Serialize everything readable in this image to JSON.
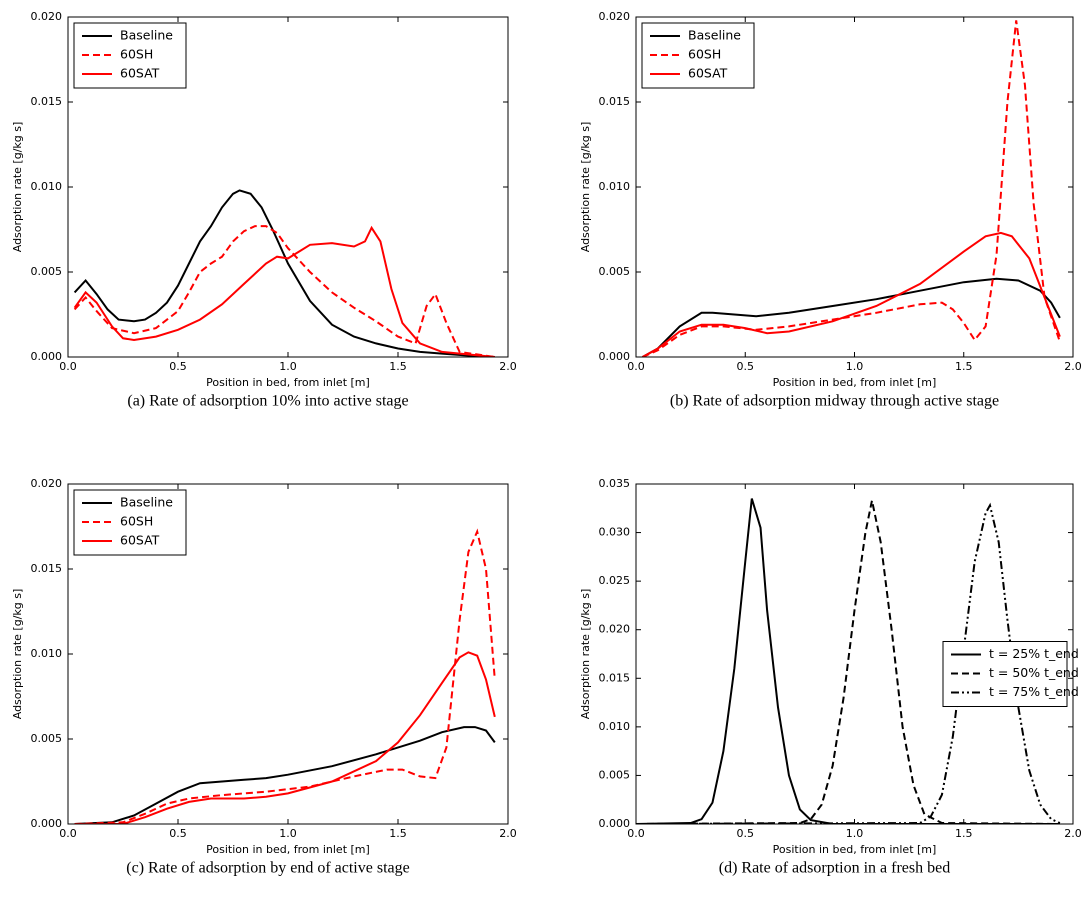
{
  "chart_data": [
    {
      "type": "line",
      "caption": "(a) Rate of adsorption 10% into active stage",
      "xlabel": "Position in bed, from inlet [m]",
      "ylabel": "Adsorption rate [g/kg s]",
      "xlim": [
        0,
        2
      ],
      "ylim": [
        0,
        0.02
      ],
      "xticks": [
        {
          "value": 0,
          "label": "0.0"
        },
        {
          "value": 0.5,
          "label": "0.5"
        },
        {
          "value": 1,
          "label": "1.0"
        },
        {
          "value": 1.5,
          "label": "1.5"
        },
        {
          "value": 2,
          "label": "2.0"
        }
      ],
      "yticks": [
        {
          "value": 0,
          "label": "0.000"
        },
        {
          "value": 0.005,
          "label": "0.005"
        },
        {
          "value": 0.01,
          "label": "0.010"
        },
        {
          "value": 0.015,
          "label": "0.015"
        },
        {
          "value": 0.02,
          "label": "0.020"
        }
      ],
      "legend": "upper left",
      "series": [
        {
          "name": "Baseline",
          "color": "#000000",
          "style": "solid",
          "x": [
            0.03,
            0.08,
            0.13,
            0.18,
            0.23,
            0.3,
            0.35,
            0.4,
            0.45,
            0.5,
            0.55,
            0.6,
            0.65,
            0.7,
            0.75,
            0.78,
            0.83,
            0.88,
            0.93,
            1.0,
            1.1,
            1.2,
            1.3,
            1.4,
            1.5,
            1.6,
            1.7,
            1.8,
            1.94
          ],
          "values": [
            0.0038,
            0.0045,
            0.0037,
            0.0028,
            0.0022,
            0.0021,
            0.0022,
            0.0026,
            0.0032,
            0.0042,
            0.0055,
            0.0068,
            0.0077,
            0.0088,
            0.0096,
            0.0098,
            0.0096,
            0.0088,
            0.0075,
            0.0055,
            0.0033,
            0.0019,
            0.0012,
            0.0008,
            0.0005,
            0.0003,
            0.0002,
            0.0001,
            0.0
          ]
        },
        {
          "name": "60SH",
          "color": "#ff0000",
          "style": "dashed",
          "x": [
            0.03,
            0.08,
            0.13,
            0.2,
            0.3,
            0.4,
            0.5,
            0.55,
            0.6,
            0.65,
            0.7,
            0.75,
            0.8,
            0.85,
            0.9,
            0.95,
            1.0,
            1.1,
            1.2,
            1.3,
            1.4,
            1.5,
            1.58,
            1.63,
            1.67,
            1.72,
            1.78,
            1.94
          ],
          "values": [
            0.0028,
            0.0035,
            0.0027,
            0.0017,
            0.0014,
            0.0017,
            0.0027,
            0.0038,
            0.005,
            0.0055,
            0.0059,
            0.0068,
            0.0074,
            0.0077,
            0.0077,
            0.0073,
            0.0064,
            0.005,
            0.0038,
            0.0029,
            0.0021,
            0.0012,
            0.0008,
            0.003,
            0.0037,
            0.002,
            0.0003,
            0.0
          ]
        },
        {
          "name": "60SAT",
          "color": "#ff0000",
          "style": "solid",
          "x": [
            0.03,
            0.08,
            0.13,
            0.2,
            0.25,
            0.3,
            0.4,
            0.5,
            0.6,
            0.7,
            0.8,
            0.9,
            0.95,
            1.0,
            1.05,
            1.1,
            1.2,
            1.3,
            1.35,
            1.38,
            1.42,
            1.47,
            1.52,
            1.6,
            1.7,
            1.94
          ],
          "values": [
            0.0029,
            0.0038,
            0.0032,
            0.0018,
            0.0011,
            0.001,
            0.0012,
            0.0016,
            0.0022,
            0.0031,
            0.0043,
            0.0055,
            0.0059,
            0.0058,
            0.0062,
            0.0066,
            0.0067,
            0.0065,
            0.0068,
            0.0076,
            0.0068,
            0.004,
            0.002,
            0.0008,
            0.0003,
            0.0
          ]
        }
      ]
    },
    {
      "type": "line",
      "caption": "(b) Rate of adsorption midway through active stage",
      "xlabel": "Position in bed, from inlet [m]",
      "ylabel": "Adsorption rate [g/kg s]",
      "xlim": [
        0,
        2
      ],
      "ylim": [
        0,
        0.02
      ],
      "xticks": [
        {
          "value": 0,
          "label": "0.0"
        },
        {
          "value": 0.5,
          "label": "0.5"
        },
        {
          "value": 1,
          "label": "1.0"
        },
        {
          "value": 1.5,
          "label": "1.5"
        },
        {
          "value": 2,
          "label": "2.0"
        }
      ],
      "yticks": [
        {
          "value": 0,
          "label": "0.000"
        },
        {
          "value": 0.005,
          "label": "0.005"
        },
        {
          "value": 0.01,
          "label": "0.010"
        },
        {
          "value": 0.015,
          "label": "0.015"
        },
        {
          "value": 0.02,
          "label": "0.020"
        }
      ],
      "legend": "upper left",
      "series": [
        {
          "name": "Baseline",
          "color": "#000000",
          "style": "solid",
          "x": [
            0.03,
            0.1,
            0.2,
            0.3,
            0.35,
            0.45,
            0.55,
            0.7,
            0.9,
            1.1,
            1.3,
            1.5,
            1.65,
            1.75,
            1.85,
            1.9,
            1.94
          ],
          "values": [
            0.0,
            0.0005,
            0.0018,
            0.0026,
            0.0026,
            0.0025,
            0.0024,
            0.0026,
            0.003,
            0.0034,
            0.0039,
            0.0044,
            0.0046,
            0.0045,
            0.0039,
            0.0032,
            0.0023
          ]
        },
        {
          "name": "60SH",
          "color": "#ff0000",
          "style": "dashed",
          "x": [
            0.03,
            0.1,
            0.2,
            0.3,
            0.4,
            0.55,
            0.7,
            0.9,
            1.1,
            1.3,
            1.4,
            1.45,
            1.5,
            1.55,
            1.6,
            1.65,
            1.7,
            1.74,
            1.78,
            1.82,
            1.87,
            1.94
          ],
          "values": [
            0.0,
            0.0004,
            0.0013,
            0.0018,
            0.0018,
            0.0016,
            0.0018,
            0.0022,
            0.0026,
            0.0031,
            0.0032,
            0.0028,
            0.002,
            0.001,
            0.0018,
            0.006,
            0.015,
            0.0198,
            0.016,
            0.009,
            0.0035,
            0.0009
          ]
        },
        {
          "name": "60SAT",
          "color": "#ff0000",
          "style": "solid",
          "x": [
            0.03,
            0.1,
            0.2,
            0.3,
            0.4,
            0.5,
            0.6,
            0.7,
            0.9,
            1.1,
            1.3,
            1.5,
            1.6,
            1.67,
            1.72,
            1.8,
            1.87,
            1.94
          ],
          "values": [
            0.0,
            0.0005,
            0.0015,
            0.0019,
            0.0019,
            0.0017,
            0.0014,
            0.0015,
            0.0021,
            0.003,
            0.0043,
            0.0062,
            0.0071,
            0.0073,
            0.0071,
            0.0058,
            0.0035,
            0.0012
          ]
        }
      ]
    },
    {
      "type": "line",
      "caption": "(c) Rate of adsorption by end of active stage",
      "xlabel": "Position in bed, from inlet [m]",
      "ylabel": "Adsorption rate [g/kg s]",
      "xlim": [
        0,
        2
      ],
      "ylim": [
        0,
        0.02
      ],
      "xticks": [
        {
          "value": 0,
          "label": "0.0"
        },
        {
          "value": 0.5,
          "label": "0.5"
        },
        {
          "value": 1,
          "label": "1.0"
        },
        {
          "value": 1.5,
          "label": "1.5"
        },
        {
          "value": 2,
          "label": "2.0"
        }
      ],
      "yticks": [
        {
          "value": 0,
          "label": "0.000"
        },
        {
          "value": 0.005,
          "label": "0.005"
        },
        {
          "value": 0.01,
          "label": "0.010"
        },
        {
          "value": 0.015,
          "label": "0.015"
        },
        {
          "value": 0.02,
          "label": "0.020"
        }
      ],
      "legend": "upper left",
      "series": [
        {
          "name": "Baseline",
          "color": "#000000",
          "style": "solid",
          "x": [
            0.03,
            0.2,
            0.3,
            0.4,
            0.5,
            0.6,
            0.7,
            0.8,
            0.9,
            1.0,
            1.2,
            1.4,
            1.6,
            1.7,
            1.8,
            1.85,
            1.9,
            1.94
          ],
          "values": [
            0.0,
            0.0001,
            0.0005,
            0.0012,
            0.0019,
            0.0024,
            0.0025,
            0.0026,
            0.0027,
            0.0029,
            0.0034,
            0.0041,
            0.0049,
            0.0054,
            0.0057,
            0.0057,
            0.0055,
            0.0048
          ]
        },
        {
          "name": "60SH",
          "color": "#ff0000",
          "style": "dashed",
          "x": [
            0.03,
            0.25,
            0.35,
            0.45,
            0.55,
            0.7,
            0.9,
            1.1,
            1.3,
            1.45,
            1.52,
            1.6,
            1.67,
            1.72,
            1.78,
            1.82,
            1.86,
            1.9,
            1.94
          ],
          "values": [
            0.0,
            0.0001,
            0.0006,
            0.0012,
            0.0015,
            0.0017,
            0.0019,
            0.0022,
            0.0028,
            0.0032,
            0.0032,
            0.0028,
            0.0027,
            0.0045,
            0.012,
            0.016,
            0.0172,
            0.015,
            0.0085
          ]
        },
        {
          "name": "60SAT",
          "color": "#ff0000",
          "style": "solid",
          "x": [
            0.03,
            0.25,
            0.35,
            0.45,
            0.55,
            0.65,
            0.8,
            0.9,
            1.0,
            1.2,
            1.4,
            1.5,
            1.6,
            1.7,
            1.78,
            1.82,
            1.86,
            1.9,
            1.94
          ],
          "values": [
            0.0,
            0.0,
            0.0004,
            0.0009,
            0.0013,
            0.0015,
            0.0015,
            0.0016,
            0.0018,
            0.0025,
            0.0037,
            0.0048,
            0.0064,
            0.0083,
            0.0098,
            0.0101,
            0.0099,
            0.0085,
            0.0063
          ]
        }
      ]
    },
    {
      "type": "line",
      "caption": "(d) Rate of adsorption in a fresh bed",
      "xlabel": "Position in bed, from inlet [m]",
      "ylabel": "Adsorption rate [g/kg s]",
      "xlim": [
        0,
        2
      ],
      "ylim": [
        0,
        0.035
      ],
      "xticks": [
        {
          "value": 0,
          "label": "0.0"
        },
        {
          "value": 0.5,
          "label": "0.5"
        },
        {
          "value": 1,
          "label": "1.0"
        },
        {
          "value": 1.5,
          "label": "1.5"
        },
        {
          "value": 2,
          "label": "2.0"
        }
      ],
      "yticks": [
        {
          "value": 0,
          "label": "0.000"
        },
        {
          "value": 0.005,
          "label": "0.005"
        },
        {
          "value": 0.01,
          "label": "0.010"
        },
        {
          "value": 0.015,
          "label": "0.015"
        },
        {
          "value": 0.02,
          "label": "0.020"
        },
        {
          "value": 0.025,
          "label": "0.025"
        },
        {
          "value": 0.03,
          "label": "0.030"
        },
        {
          "value": 0.035,
          "label": "0.035"
        }
      ],
      "legend": "center right",
      "series": [
        {
          "name": "t = 25% t_end",
          "color": "#000000",
          "style": "solid",
          "x": [
            0.0,
            0.25,
            0.3,
            0.35,
            0.4,
            0.45,
            0.5,
            0.53,
            0.57,
            0.6,
            0.65,
            0.7,
            0.75,
            0.8,
            0.9,
            1.94
          ],
          "values": [
            0.0,
            0.0001,
            0.0005,
            0.0022,
            0.0075,
            0.016,
            0.027,
            0.0335,
            0.0305,
            0.022,
            0.012,
            0.005,
            0.0015,
            0.0004,
            0.0,
            0.0
          ]
        },
        {
          "name": "t = 50% t_end",
          "color": "#000000",
          "style": "dashed",
          "x": [
            0.0,
            0.75,
            0.8,
            0.85,
            0.9,
            0.95,
            1.0,
            1.05,
            1.08,
            1.12,
            1.17,
            1.22,
            1.27,
            1.32,
            1.4,
            1.94
          ],
          "values": [
            0.0,
            0.0001,
            0.0005,
            0.002,
            0.006,
            0.013,
            0.022,
            0.03,
            0.0333,
            0.029,
            0.02,
            0.01,
            0.004,
            0.001,
            0.0001,
            0.0
          ]
        },
        {
          "name": "t = 75% t_end",
          "color": "#000000",
          "style": "dashdot",
          "x": [
            0.0,
            1.3,
            1.35,
            1.4,
            1.45,
            1.5,
            1.55,
            1.6,
            1.62,
            1.66,
            1.7,
            1.75,
            1.8,
            1.85,
            1.9,
            1.94
          ],
          "values": [
            0.0,
            0.0001,
            0.0008,
            0.003,
            0.009,
            0.018,
            0.027,
            0.032,
            0.0328,
            0.029,
            0.021,
            0.012,
            0.0055,
            0.002,
            0.0005,
            0.0001
          ]
        }
      ]
    }
  ]
}
